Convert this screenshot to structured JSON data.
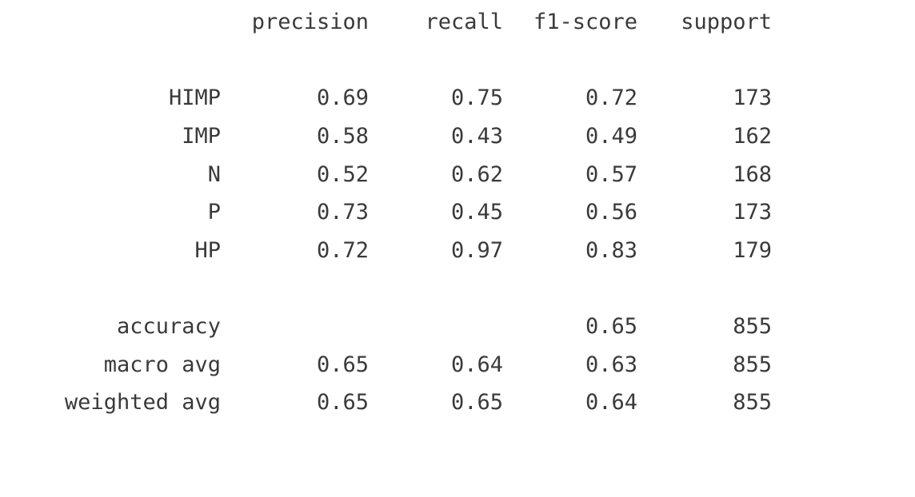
{
  "headers": {
    "precision": "precision",
    "recall": "recall",
    "f1": "f1-score",
    "support": "support"
  },
  "classes": [
    {
      "label": "HIMP",
      "precision": "0.69",
      "recall": "0.75",
      "f1": "0.72",
      "support": "173"
    },
    {
      "label": "IMP",
      "precision": "0.58",
      "recall": "0.43",
      "f1": "0.49",
      "support": "162"
    },
    {
      "label": "N",
      "precision": "0.52",
      "recall": "0.62",
      "f1": "0.57",
      "support": "168"
    },
    {
      "label": "P",
      "precision": "0.73",
      "recall": "0.45",
      "f1": "0.56",
      "support": "173"
    },
    {
      "label": "HP",
      "precision": "0.72",
      "recall": "0.97",
      "f1": "0.83",
      "support": "179"
    }
  ],
  "summary": [
    {
      "label": "accuracy",
      "precision": "",
      "recall": "",
      "f1": "0.65",
      "support": "855"
    },
    {
      "label": "macro avg",
      "precision": "0.65",
      "recall": "0.64",
      "f1": "0.63",
      "support": "855"
    },
    {
      "label": "weighted avg",
      "precision": "0.65",
      "recall": "0.65",
      "f1": "0.64",
      "support": "855"
    }
  ]
}
